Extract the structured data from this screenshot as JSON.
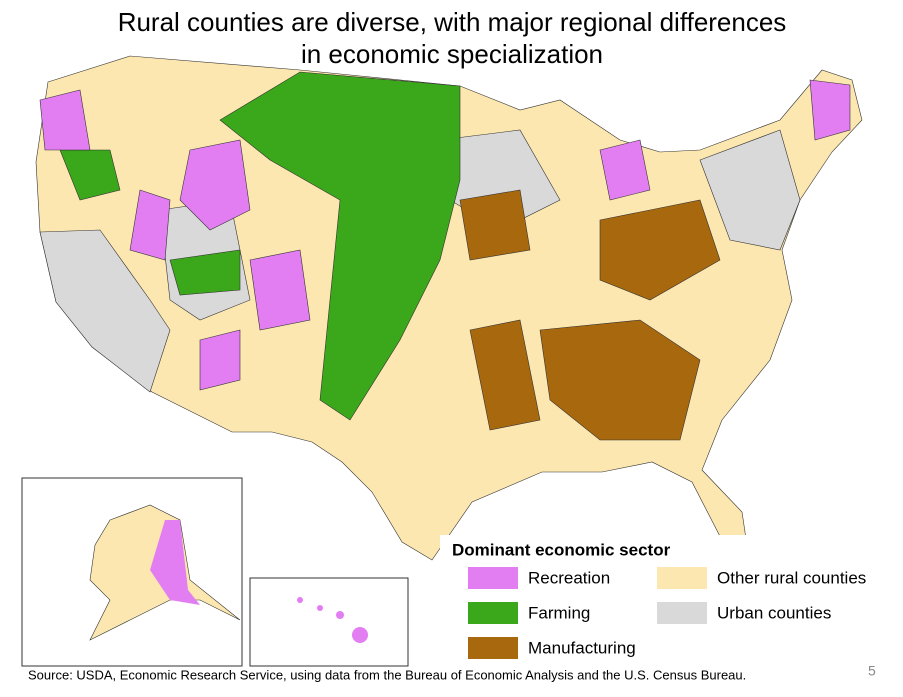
{
  "title": [
    "Rural counties are diverse, with major regional differences",
    "in economic specialization"
  ],
  "legend": {
    "title": "Dominant economic sector",
    "items": [
      {
        "label": "Recreation",
        "color": "#e27ef2"
      },
      {
        "label": "Other rural counties",
        "color": "#fde7b0"
      },
      {
        "label": "Farming",
        "color": "#3aa81a"
      },
      {
        "label": "Urban counties",
        "color": "#d9d9d9"
      },
      {
        "label": "Manufacturing",
        "color": "#a8680e"
      }
    ]
  },
  "source": "Source: USDA, Economic Research Service, using data from the Bureau of Economic Analysis and the U.S. Census Bureau.",
  "page_number": "5"
}
